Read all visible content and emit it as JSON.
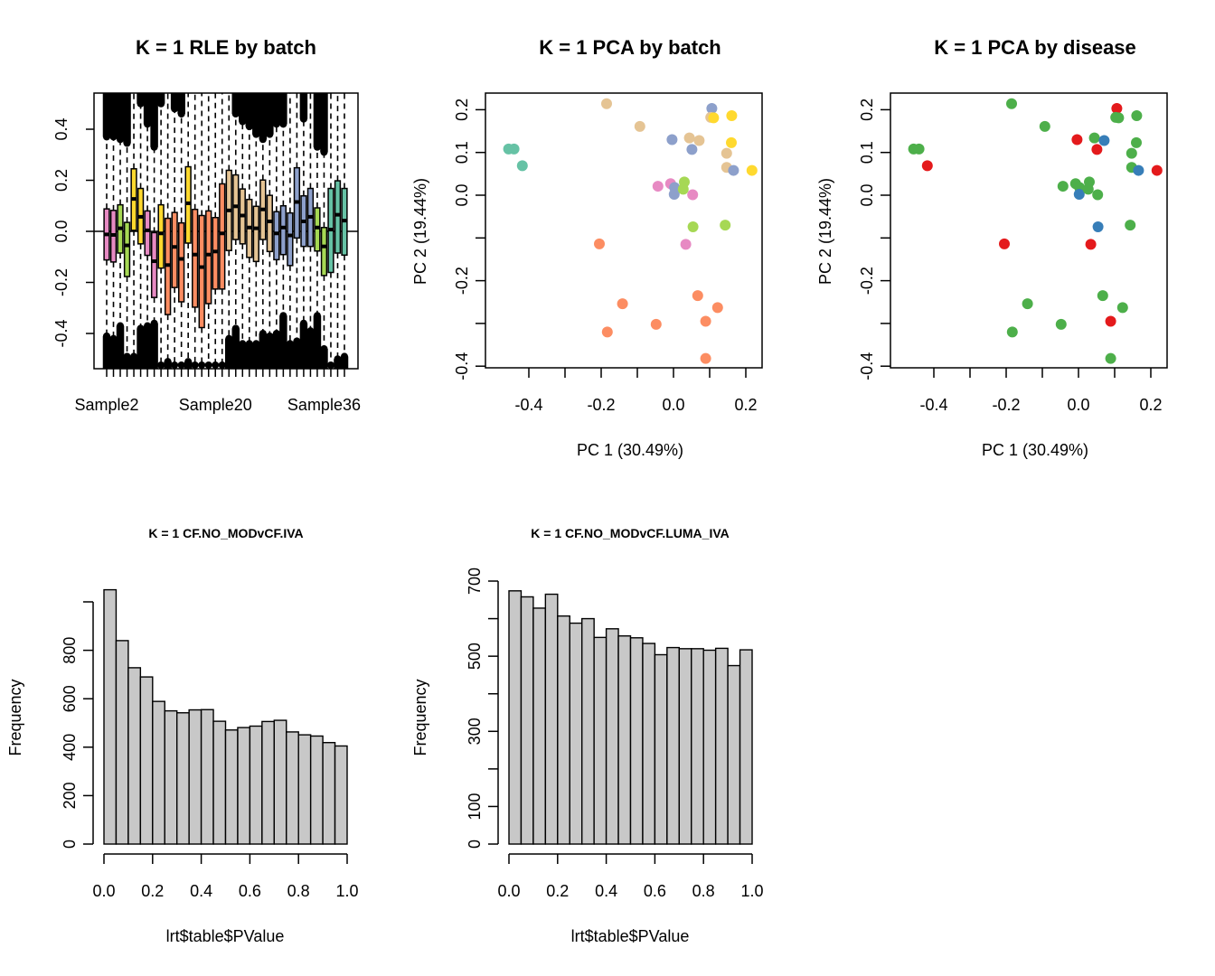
{
  "chart_data": [
    {
      "id": "rle",
      "type": "boxplot",
      "title": "K = 1 RLE by batch",
      "xlabel": "",
      "ylabel": "",
      "ylim": [
        -0.54,
        0.54
      ],
      "yticks": [
        -0.4,
        -0.2,
        0.0,
        0.2,
        0.4
      ],
      "ytick_labels": [
        "-0.4",
        "-0.2",
        "0.0",
        "0.2",
        "0.4"
      ],
      "xtick_labels_shown": [
        {
          "index": 0,
          "label": "Sample2"
        },
        {
          "index": 16,
          "label": "Sample20"
        },
        {
          "index": 32,
          "label": "Sample36"
        }
      ],
      "reference_line": 0.0,
      "batch_colors": {
        "pink": "#E78AC3",
        "green": "#A6D854",
        "yellow": "#FFD92F",
        "orange": "#FC8D62",
        "tan": "#E5C494",
        "blue": "#8DA0CB",
        "teal": "#66C2A5"
      },
      "boxes": [
        {
          "batch": "pink",
          "q3": 0.088,
          "median": -0.012,
          "q1": -0.112,
          "upper_out": 0.37,
          "lower_out": -0.41
        },
        {
          "batch": "pink",
          "q3": 0.082,
          "median": -0.014,
          "q1": -0.12,
          "upper_out": 0.37,
          "lower_out": -0.42
        },
        {
          "batch": "green",
          "q3": 0.104,
          "median": 0.012,
          "q1": -0.085,
          "upper_out": 0.36,
          "lower_out": -0.37
        },
        {
          "batch": "green",
          "q3": 0.035,
          "median": -0.055,
          "q1": -0.177,
          "upper_out": 0.345,
          "lower_out": -0.49
        },
        {
          "batch": "yellow",
          "q3": 0.245,
          "median": 0.127,
          "q1": 0.004,
          "upper_out": 0.54,
          "lower_out": -0.49
        },
        {
          "batch": "yellow",
          "q3": 0.168,
          "median": 0.057,
          "q1": -0.049,
          "upper_out": 0.5,
          "lower_out": -0.38
        },
        {
          "batch": "pink",
          "q3": 0.08,
          "median": 0.004,
          "q1": -0.094,
          "upper_out": 0.42,
          "lower_out": -0.37
        },
        {
          "batch": "pink",
          "q3": -0.005,
          "median": -0.117,
          "q1": -0.259,
          "upper_out": 0.33,
          "lower_out": -0.36
        },
        {
          "batch": "yellow",
          "q3": 0.104,
          "median": -0.008,
          "q1": -0.144,
          "upper_out": 0.5,
          "lower_out": -0.54
        },
        {
          "batch": "orange",
          "q3": 0.051,
          "median": -0.132,
          "q1": -0.326,
          "upper_out": 0.54,
          "lower_out": -0.51
        },
        {
          "batch": "orange",
          "q3": 0.074,
          "median": -0.061,
          "q1": -0.22,
          "upper_out": 0.48,
          "lower_out": -0.54
        },
        {
          "batch": "orange",
          "q3": 0.033,
          "median": -0.108,
          "q1": -0.276,
          "upper_out": 0.46,
          "lower_out": -0.54
        },
        {
          "batch": "yellow",
          "q3": 0.253,
          "median": 0.11,
          "q1": -0.046,
          "upper_out": 0.54,
          "lower_out": -0.51
        },
        {
          "batch": "orange",
          "q3": 0.086,
          "median": -0.091,
          "q1": -0.297,
          "upper_out": 0.54,
          "lower_out": -0.54
        },
        {
          "batch": "orange",
          "q3": 0.062,
          "median": -0.14,
          "q1": -0.377,
          "upper_out": 0.54,
          "lower_out": -0.54
        },
        {
          "batch": "orange",
          "q3": 0.08,
          "median": -0.091,
          "q1": -0.283,
          "upper_out": 0.54,
          "lower_out": -0.54
        },
        {
          "batch": "orange",
          "q3": 0.054,
          "median": -0.079,
          "q1": -0.226,
          "upper_out": 0.54,
          "lower_out": -0.54
        },
        {
          "batch": "orange",
          "q3": 0.186,
          "median": -0.008,
          "q1": -0.226,
          "upper_out": 0.54,
          "lower_out": -0.54
        },
        {
          "batch": "tan",
          "q3": 0.239,
          "median": 0.082,
          "q1": -0.075,
          "upper_out": 0.54,
          "lower_out": -0.42
        },
        {
          "batch": "tan",
          "q3": 0.221,
          "median": 0.098,
          "q1": -0.032,
          "upper_out": 0.46,
          "lower_out": -0.38
        },
        {
          "batch": "tan",
          "q3": 0.166,
          "median": 0.062,
          "q1": -0.049,
          "upper_out": 0.43,
          "lower_out": -0.44
        },
        {
          "batch": "tan",
          "q3": 0.125,
          "median": 0.015,
          "q1": -0.102,
          "upper_out": 0.41,
          "lower_out": -0.44
        },
        {
          "batch": "tan",
          "q3": 0.098,
          "median": 0.012,
          "q1": -0.118,
          "upper_out": 0.38,
          "lower_out": -0.44
        },
        {
          "batch": "tan",
          "q3": 0.201,
          "median": 0.086,
          "q1": -0.032,
          "upper_out": 0.36,
          "lower_out": -0.4
        },
        {
          "batch": "tan",
          "q3": 0.141,
          "median": 0.039,
          "q1": -0.079,
          "upper_out": 0.38,
          "lower_out": -0.41
        },
        {
          "batch": "blue",
          "q3": 0.077,
          "median": -0.008,
          "q1": -0.111,
          "upper_out": 0.42,
          "lower_out": -0.4
        },
        {
          "batch": "blue",
          "q3": 0.1,
          "median": 0.015,
          "q1": -0.091,
          "upper_out": 0.42,
          "lower_out": -0.33
        },
        {
          "batch": "blue",
          "q3": 0.072,
          "median": -0.016,
          "q1": -0.134,
          "upper_out": 0.54,
          "lower_out": -0.44
        },
        {
          "batch": "blue",
          "q3": 0.249,
          "median": 0.115,
          "q1": -0.026,
          "upper_out": 0.54,
          "lower_out": -0.43
        },
        {
          "batch": "blue",
          "q3": 0.139,
          "median": 0.039,
          "q1": -0.059,
          "upper_out": 0.44,
          "lower_out": -0.36
        },
        {
          "batch": "blue",
          "q3": 0.168,
          "median": 0.057,
          "q1": -0.059,
          "upper_out": 0.54,
          "lower_out": -0.39
        },
        {
          "batch": "green",
          "q3": 0.092,
          "median": 0.015,
          "q1": -0.077,
          "upper_out": 0.33,
          "lower_out": -0.33
        },
        {
          "batch": "green",
          "q3": 0.015,
          "median": -0.059,
          "q1": -0.173,
          "upper_out": 0.31,
          "lower_out": -0.46
        },
        {
          "batch": "teal",
          "q3": 0.168,
          "median": 0.007,
          "q1": -0.161,
          "upper_out": 0.54,
          "lower_out": -0.54
        },
        {
          "batch": "teal",
          "q3": 0.198,
          "median": 0.065,
          "q1": -0.085,
          "upper_out": 0.54,
          "lower_out": -0.5
        },
        {
          "batch": "teal",
          "q3": 0.168,
          "median": 0.042,
          "q1": -0.093,
          "upper_out": 0.54,
          "lower_out": -0.49
        }
      ]
    },
    {
      "id": "pca-batch",
      "type": "scatter",
      "title": "K = 1 PCA by batch",
      "xlabel": "PC 1 (30.49%)",
      "ylabel": "PC 2 (19.44%)",
      "xlim": [
        -0.52,
        0.245
      ],
      "ylim": [
        -0.405,
        0.24
      ],
      "xticks": [
        -0.4,
        -0.3,
        -0.2,
        -0.1,
        0.0,
        0.1,
        0.2
      ],
      "xtick_labels": [
        "-0.4",
        "",
        "-0.2",
        "",
        "0.0",
        "",
        "0.2"
      ],
      "yticks": [
        -0.4,
        -0.3,
        -0.2,
        -0.1,
        0.0,
        0.1,
        0.2
      ],
      "ytick_labels": [
        "-0.4",
        "",
        "-0.2",
        "",
        "0.0",
        "0.1",
        "0.2"
      ],
      "colors": {
        "pink": "#E78AC3",
        "green": "#A6D854",
        "yellow": "#FFD92F",
        "orange": "#FC8D62",
        "tan": "#E5C494",
        "blue": "#8DA0CB",
        "teal": "#66C2A5"
      },
      "points": [
        {
          "x": -0.456,
          "y": 0.108,
          "batch": "teal"
        },
        {
          "x": -0.441,
          "y": 0.108,
          "batch": "teal"
        },
        {
          "x": -0.418,
          "y": 0.069,
          "batch": "teal"
        },
        {
          "x": -0.185,
          "y": 0.214,
          "batch": "tan"
        },
        {
          "x": -0.093,
          "y": 0.161,
          "batch": "tan"
        },
        {
          "x": -0.004,
          "y": 0.13,
          "batch": "blue"
        },
        {
          "x": 0.044,
          "y": 0.134,
          "batch": "tan"
        },
        {
          "x": 0.071,
          "y": 0.128,
          "batch": "tan"
        },
        {
          "x": 0.051,
          "y": 0.107,
          "batch": "blue"
        },
        {
          "x": 0.106,
          "y": 0.203,
          "batch": "blue"
        },
        {
          "x": 0.103,
          "y": 0.182,
          "batch": "tan"
        },
        {
          "x": 0.111,
          "y": 0.181,
          "batch": "yellow"
        },
        {
          "x": 0.161,
          "y": 0.186,
          "batch": "yellow"
        },
        {
          "x": 0.16,
          "y": 0.123,
          "batch": "yellow"
        },
        {
          "x": 0.147,
          "y": 0.098,
          "batch": "tan"
        },
        {
          "x": 0.147,
          "y": 0.065,
          "batch": "tan"
        },
        {
          "x": 0.166,
          "y": 0.058,
          "batch": "blue"
        },
        {
          "x": 0.217,
          "y": 0.058,
          "batch": "yellow"
        },
        {
          "x": -0.043,
          "y": 0.021,
          "batch": "pink"
        },
        {
          "x": -0.008,
          "y": 0.027,
          "batch": "pink"
        },
        {
          "x": 0.003,
          "y": 0.018,
          "batch": "blue"
        },
        {
          "x": 0.002,
          "y": 0.002,
          "batch": "blue"
        },
        {
          "x": 0.03,
          "y": 0.031,
          "batch": "green"
        },
        {
          "x": 0.027,
          "y": 0.014,
          "batch": "green"
        },
        {
          "x": 0.053,
          "y": 0.001,
          "batch": "pink"
        },
        {
          "x": 0.054,
          "y": -0.074,
          "batch": "green"
        },
        {
          "x": 0.143,
          "y": -0.07,
          "batch": "green"
        },
        {
          "x": -0.205,
          "y": -0.114,
          "batch": "orange"
        },
        {
          "x": 0.034,
          "y": -0.115,
          "batch": "pink"
        },
        {
          "x": 0.067,
          "y": -0.235,
          "batch": "orange"
        },
        {
          "x": -0.141,
          "y": -0.254,
          "batch": "orange"
        },
        {
          "x": 0.122,
          "y": -0.263,
          "batch": "orange"
        },
        {
          "x": -0.048,
          "y": -0.302,
          "batch": "orange"
        },
        {
          "x": 0.089,
          "y": -0.295,
          "batch": "orange"
        },
        {
          "x": -0.183,
          "y": -0.32,
          "batch": "orange"
        },
        {
          "x": 0.089,
          "y": -0.382,
          "batch": "orange"
        }
      ]
    },
    {
      "id": "pca-disease",
      "type": "scatter",
      "title": "K = 1 PCA by disease",
      "xlabel": "PC 1 (30.49%)",
      "ylabel": "PC 2 (19.44%)",
      "xlim": [
        -0.52,
        0.245
      ],
      "ylim": [
        -0.405,
        0.24
      ],
      "xticks": [
        -0.4,
        -0.3,
        -0.2,
        -0.1,
        0.0,
        0.1,
        0.2
      ],
      "xtick_labels": [
        "-0.4",
        "",
        "-0.2",
        "",
        "0.0",
        "",
        "0.2"
      ],
      "yticks": [
        -0.4,
        -0.3,
        -0.2,
        -0.1,
        0.0,
        0.1,
        0.2
      ],
      "ytick_labels": [
        "-0.4",
        "",
        "-0.2",
        "",
        "0.0",
        "0.1",
        "0.2"
      ],
      "colors": {
        "red": "#E41A1C",
        "green": "#4DAF4A",
        "blue": "#377EB8"
      },
      "points": [
        {
          "x": -0.456,
          "y": 0.108,
          "group": "green"
        },
        {
          "x": -0.441,
          "y": 0.108,
          "group": "green"
        },
        {
          "x": -0.418,
          "y": 0.069,
          "group": "red"
        },
        {
          "x": -0.185,
          "y": 0.214,
          "group": "green"
        },
        {
          "x": -0.093,
          "y": 0.161,
          "group": "green"
        },
        {
          "x": -0.004,
          "y": 0.13,
          "group": "red"
        },
        {
          "x": 0.044,
          "y": 0.134,
          "group": "green"
        },
        {
          "x": 0.071,
          "y": 0.128,
          "group": "blue"
        },
        {
          "x": 0.051,
          "y": 0.107,
          "group": "red"
        },
        {
          "x": 0.106,
          "y": 0.203,
          "group": "red"
        },
        {
          "x": 0.103,
          "y": 0.182,
          "group": "green"
        },
        {
          "x": 0.111,
          "y": 0.181,
          "group": "green"
        },
        {
          "x": 0.161,
          "y": 0.186,
          "group": "green"
        },
        {
          "x": 0.16,
          "y": 0.123,
          "group": "green"
        },
        {
          "x": 0.147,
          "y": 0.098,
          "group": "green"
        },
        {
          "x": 0.147,
          "y": 0.065,
          "group": "green"
        },
        {
          "x": 0.166,
          "y": 0.058,
          "group": "blue"
        },
        {
          "x": 0.217,
          "y": 0.058,
          "group": "red"
        },
        {
          "x": -0.043,
          "y": 0.021,
          "group": "green"
        },
        {
          "x": -0.008,
          "y": 0.027,
          "group": "green"
        },
        {
          "x": 0.003,
          "y": 0.018,
          "group": "green"
        },
        {
          "x": 0.002,
          "y": 0.002,
          "group": "blue"
        },
        {
          "x": 0.03,
          "y": 0.031,
          "group": "green"
        },
        {
          "x": 0.027,
          "y": 0.014,
          "group": "green"
        },
        {
          "x": 0.053,
          "y": 0.001,
          "group": "green"
        },
        {
          "x": 0.054,
          "y": -0.074,
          "group": "blue"
        },
        {
          "x": 0.143,
          "y": -0.07,
          "group": "green"
        },
        {
          "x": -0.205,
          "y": -0.114,
          "group": "red"
        },
        {
          "x": 0.034,
          "y": -0.115,
          "group": "red"
        },
        {
          "x": 0.067,
          "y": -0.235,
          "group": "green"
        },
        {
          "x": -0.141,
          "y": -0.254,
          "group": "green"
        },
        {
          "x": 0.122,
          "y": -0.263,
          "group": "green"
        },
        {
          "x": -0.048,
          "y": -0.302,
          "group": "green"
        },
        {
          "x": 0.089,
          "y": -0.295,
          "group": "red"
        },
        {
          "x": -0.183,
          "y": -0.32,
          "group": "green"
        },
        {
          "x": 0.089,
          "y": -0.382,
          "group": "green"
        }
      ]
    },
    {
      "id": "hist-iva",
      "type": "bar",
      "title": "K = 1 CF.NO_MODvCF.IVA",
      "xlabel": "lrt$table$PValue",
      "ylabel": "Frequency",
      "xlim": [
        0,
        1
      ],
      "ylim": [
        0,
        1050
      ],
      "bin_width": 0.05,
      "xticks": [
        0.0,
        0.2,
        0.4,
        0.6,
        0.8,
        1.0
      ],
      "xtick_labels": [
        "0.0",
        "0.2",
        "0.4",
        "0.6",
        "0.8",
        "1.0"
      ],
      "yticks": [
        0,
        200,
        400,
        600,
        800,
        1000
      ],
      "ytick_labels": [
        "0",
        "200",
        "400",
        "600",
        "800",
        ""
      ],
      "bar_color": "#C8C8C8",
      "values": [
        1050,
        840,
        728,
        690,
        589,
        550,
        542,
        554,
        555,
        507,
        471,
        481,
        487,
        506,
        511,
        463,
        451,
        446,
        419,
        405
      ]
    },
    {
      "id": "hist-luma-iva",
      "type": "bar",
      "title": "K = 1 CF.NO_MODvCF.LUMA_IVA",
      "xlabel": "lrt$table$PValue",
      "ylabel": "Frequency",
      "xlim": [
        0,
        1
      ],
      "ylim": [
        0,
        700
      ],
      "bin_width": 0.05,
      "xticks": [
        0.0,
        0.2,
        0.4,
        0.6,
        0.8,
        1.0
      ],
      "xtick_labels": [
        "0.0",
        "0.2",
        "0.4",
        "0.6",
        "0.8",
        "1.0"
      ],
      "yticks": [
        0,
        100,
        200,
        300,
        400,
        500,
        600,
        700
      ],
      "ytick_labels": [
        "0",
        "100",
        "",
        "300",
        "",
        "500",
        "",
        "700"
      ],
      "bar_color": "#C8C8C8",
      "values": [
        674,
        658,
        628,
        665,
        607,
        588,
        600,
        550,
        573,
        554,
        549,
        534,
        504,
        523,
        520,
        520,
        516,
        521,
        475,
        517
      ]
    }
  ]
}
